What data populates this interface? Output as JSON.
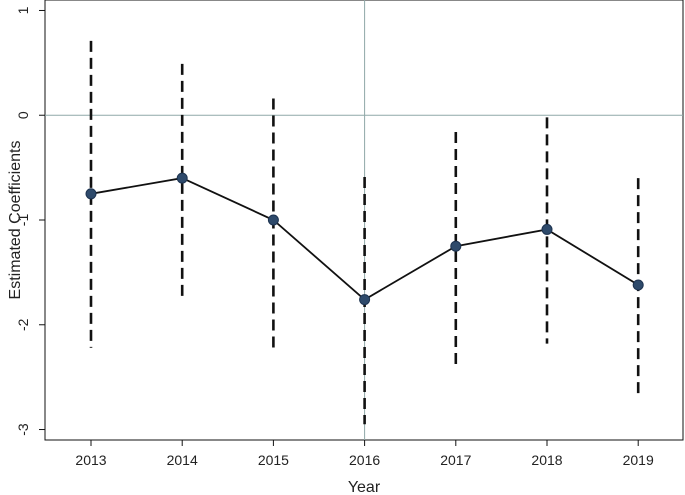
{
  "chart_data": {
    "type": "line",
    "xlabel": "Year",
    "ylabel": "Estimated Coefficients",
    "x": [
      "2013",
      "2014",
      "2015",
      "2016",
      "2017",
      "2018",
      "2019"
    ],
    "series": [
      {
        "values": [
          -0.75,
          -0.6,
          -1.0,
          -1.76,
          -1.25,
          -1.09,
          -1.62
        ],
        "ci_low": [
          -2.22,
          -1.73,
          -2.22,
          -2.95,
          -2.4,
          -2.18,
          -2.68
        ],
        "ci_high": [
          0.71,
          0.49,
          0.16,
          -0.59,
          -0.16,
          -0.02,
          -0.6
        ]
      }
    ],
    "ylim": [
      -3.1,
      1.1
    ],
    "yticks": [
      "1",
      "0",
      "-1",
      "-2",
      "-3"
    ],
    "reference_lines": {
      "y": 0,
      "x": "2016"
    },
    "grid": false,
    "legend": "none",
    "colors": {
      "line": "#111111",
      "marker": "#2e4a6b",
      "ci": "#111111",
      "reference": "#8fa8a8"
    }
  }
}
